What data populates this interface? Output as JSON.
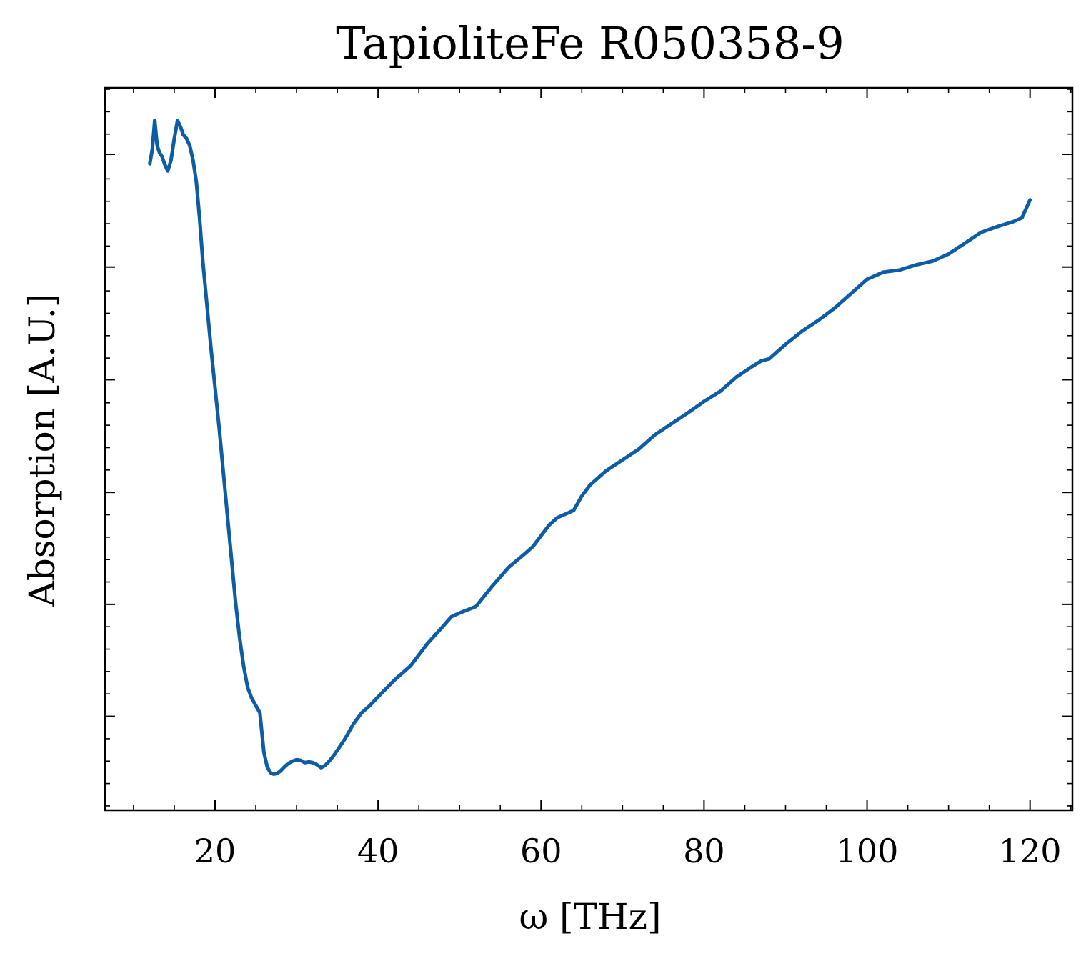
{
  "chart_data": {
    "type": "line",
    "title": "TapioliteFe R050358-9",
    "xlabel": "ω [THz]",
    "ylabel": "Absorption [A.U.]",
    "xlim": [
      6.5,
      125.2
    ],
    "ylim": [
      0,
      1
    ],
    "x_ticks": [
      20,
      40,
      60,
      80,
      100,
      120
    ],
    "x_tick_labels": [
      "20",
      "40",
      "60",
      "80",
      "100",
      "120"
    ],
    "y_ticks": [
      0.13,
      0.285,
      0.44,
      0.596,
      0.752,
      0.908
    ],
    "y_tick_labels_shown": false,
    "grid": false,
    "legend": "none",
    "series": [
      {
        "color": "#0C5DA5",
        "x": [
          12.0,
          12.3,
          12.6,
          12.9,
          13.2,
          13.5,
          13.8,
          14.2,
          14.6,
          15.0,
          15.4,
          15.8,
          16.1,
          16.5,
          16.9,
          17.3,
          17.7,
          18.1,
          18.5,
          19.0,
          19.5,
          20.0,
          20.5,
          21.0,
          21.5,
          22.0,
          22.5,
          23.0,
          23.5,
          24.0,
          24.5,
          25.0,
          25.5,
          26.0,
          26.4,
          26.8,
          27.2,
          27.6,
          28.0,
          28.5,
          29.0,
          29.5,
          30.0,
          30.5,
          31.0,
          31.5,
          32.0,
          32.5,
          33.0,
          33.5,
          34.0,
          34.5,
          35.0,
          36.0,
          37.0,
          38.0,
          39.0,
          40.0,
          42.0,
          44.0,
          46.0,
          48.0,
          49.0,
          50.0,
          52.0,
          54.0,
          56.0,
          58.0,
          59.0,
          60.0,
          61.0,
          62.0,
          63.0,
          64.0,
          65.0,
          66.0,
          68.0,
          70.0,
          72.0,
          74.0,
          76.0,
          78.0,
          80.0,
          82.0,
          84.0,
          86.0,
          87.0,
          88.0,
          90.0,
          92.0,
          94.0,
          96.0,
          98.0,
          100.0,
          102.0,
          104.0,
          106.0,
          108.0,
          110.0,
          112.0,
          114.0,
          116.0,
          118.0,
          119.0,
          120.0
        ],
        "y": [
          0.895,
          0.915,
          0.955,
          0.92,
          0.91,
          0.905,
          0.895,
          0.885,
          0.9,
          0.93,
          0.955,
          0.945,
          0.935,
          0.93,
          0.92,
          0.9,
          0.87,
          0.82,
          0.76,
          0.7,
          0.64,
          0.585,
          0.53,
          0.47,
          0.41,
          0.35,
          0.29,
          0.24,
          0.2,
          0.17,
          0.155,
          0.145,
          0.135,
          0.08,
          0.06,
          0.052,
          0.05,
          0.051,
          0.054,
          0.06,
          0.065,
          0.068,
          0.07,
          0.069,
          0.066,
          0.067,
          0.066,
          0.063,
          0.059,
          0.062,
          0.068,
          0.075,
          0.083,
          0.1,
          0.12,
          0.135,
          0.145,
          0.157,
          0.18,
          0.2,
          0.23,
          0.255,
          0.268,
          0.273,
          0.282,
          0.31,
          0.336,
          0.355,
          0.365,
          0.38,
          0.395,
          0.405,
          0.41,
          0.415,
          0.435,
          0.45,
          0.47,
          0.485,
          0.5,
          0.52,
          0.535,
          0.55,
          0.566,
          0.58,
          0.6,
          0.615,
          0.622,
          0.625,
          0.645,
          0.663,
          0.678,
          0.695,
          0.715,
          0.735,
          0.745,
          0.748,
          0.755,
          0.76,
          0.77,
          0.785,
          0.8,
          0.808,
          0.815,
          0.82,
          0.845
        ]
      }
    ]
  }
}
